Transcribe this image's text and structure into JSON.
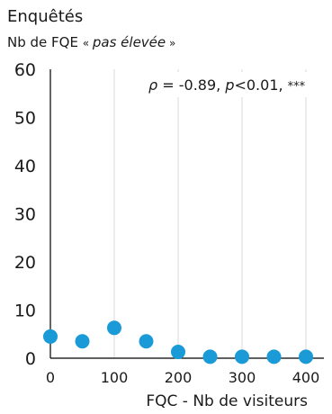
{
  "chart_data": {
    "type": "scatter",
    "title": "Enquêtés",
    "ylabel_parts": [
      "Nb de FQE ",
      "« ",
      "pas élevée",
      " »"
    ],
    "xlabel": "FQC - Nb de visiteurs",
    "xlim": [
      0,
      400
    ],
    "ylim": [
      0,
      60
    ],
    "x_ticks": [
      0,
      100,
      200,
      300,
      400
    ],
    "y_ticks": [
      0,
      10,
      20,
      30,
      40,
      50,
      60
    ],
    "grid": "vertical",
    "point_color": "#1a9ad6",
    "annotation": {
      "rho_symbol": "ρ",
      "rho_value": " = -0.89,  ",
      "p_symbol": "p",
      "p_value": "<0.01,  ",
      "stars": "***"
    },
    "points": [
      {
        "x": 0,
        "y": 4.5
      },
      {
        "x": 50,
        "y": 3.5
      },
      {
        "x": 100,
        "y": 6.3
      },
      {
        "x": 150,
        "y": 3.5
      },
      {
        "x": 200,
        "y": 1.3
      },
      {
        "x": 250,
        "y": 0.3
      },
      {
        "x": 300,
        "y": 0.3
      },
      {
        "x": 350,
        "y": 0.3
      },
      {
        "x": 400,
        "y": 0.3
      }
    ]
  }
}
